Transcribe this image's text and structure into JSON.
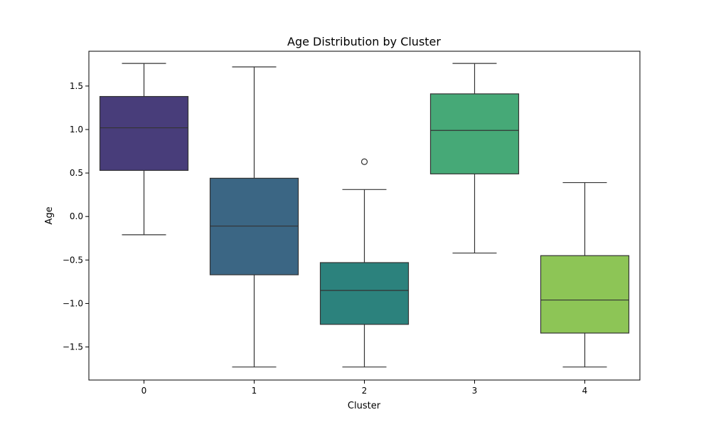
{
  "chart_data": {
    "type": "box",
    "title": "Age Distribution by Cluster",
    "xlabel": "Cluster",
    "ylabel": "Age",
    "categories": [
      "0",
      "1",
      "2",
      "3",
      "4"
    ],
    "ylim": [
      -1.88,
      1.9
    ],
    "yticks": [
      -1.5,
      -1.0,
      -0.5,
      0.0,
      0.5,
      1.0,
      1.5
    ],
    "ytick_labels": [
      "−1.5",
      "−1.0",
      "−0.5",
      "0.0",
      "0.5",
      "1.0",
      "1.5"
    ],
    "grid": false,
    "boxes": [
      {
        "category": "0",
        "whisker_low": -0.21,
        "q1": 0.53,
        "median": 1.02,
        "q3": 1.38,
        "whisker_high": 1.76,
        "outliers": [],
        "color": "#483d7a"
      },
      {
        "category": "1",
        "whisker_low": -1.73,
        "q1": -0.67,
        "median": -0.11,
        "q3": 0.44,
        "whisker_high": 1.72,
        "outliers": [],
        "color": "#3b6684"
      },
      {
        "category": "2",
        "whisker_low": -1.73,
        "q1": -1.24,
        "median": -0.85,
        "q3": -0.53,
        "whisker_high": 0.31,
        "outliers": [
          0.63
        ],
        "color": "#2c827d"
      },
      {
        "category": "3",
        "whisker_low": -0.42,
        "q1": 0.49,
        "median": 0.99,
        "q3": 1.41,
        "whisker_high": 1.76,
        "outliers": [],
        "color": "#46a977"
      },
      {
        "category": "4",
        "whisker_low": -1.73,
        "q1": -1.34,
        "median": -0.96,
        "q3": -0.45,
        "whisker_high": 0.39,
        "outliers": [],
        "color": "#8dc556"
      }
    ]
  }
}
